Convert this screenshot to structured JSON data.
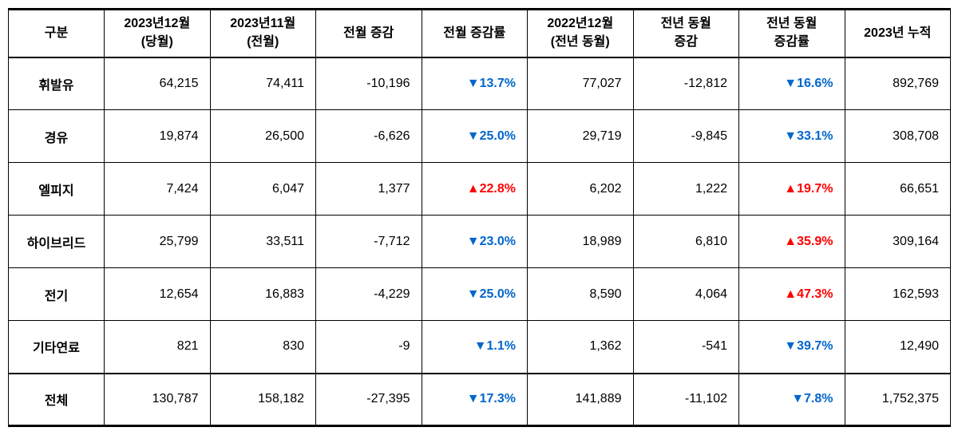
{
  "columns": [
    "구분",
    "2023년12월\n(당월)",
    "2023년11월\n(전월)",
    "전월 증감",
    "전월 증감률",
    "2022년12월\n(전년 동월)",
    "전년 동월\n증감",
    "전년 동월\n증감률",
    "2023년 누적"
  ],
  "rows": [
    {
      "label": "휘발유",
      "c1": "64,215",
      "c2": "74,411",
      "c3": "-10,196",
      "c4": {
        "dir": "down",
        "val": "13.7%"
      },
      "c5": "77,027",
      "c6": "-12,812",
      "c7": {
        "dir": "down",
        "val": "16.6%"
      },
      "c8": "892,769"
    },
    {
      "label": "경유",
      "c1": "19,874",
      "c2": "26,500",
      "c3": "-6,626",
      "c4": {
        "dir": "down",
        "val": "25.0%"
      },
      "c5": "29,719",
      "c6": "-9,845",
      "c7": {
        "dir": "down",
        "val": "33.1%"
      },
      "c8": "308,708"
    },
    {
      "label": "엘피지",
      "c1": "7,424",
      "c2": "6,047",
      "c3": "1,377",
      "c4": {
        "dir": "up",
        "val": "22.8%"
      },
      "c5": "6,202",
      "c6": "1,222",
      "c7": {
        "dir": "up",
        "val": "19.7%"
      },
      "c8": "66,651"
    },
    {
      "label": "하이브리드",
      "c1": "25,799",
      "c2": "33,511",
      "c3": "-7,712",
      "c4": {
        "dir": "down",
        "val": "23.0%"
      },
      "c5": "18,989",
      "c6": "6,810",
      "c7": {
        "dir": "up",
        "val": "35.9%"
      },
      "c8": "309,164"
    },
    {
      "label": "전기",
      "c1": "12,654",
      "c2": "16,883",
      "c3": "-4,229",
      "c4": {
        "dir": "down",
        "val": "25.0%"
      },
      "c5": "8,590",
      "c6": "4,064",
      "c7": {
        "dir": "up",
        "val": "47.3%"
      },
      "c8": "162,593"
    },
    {
      "label": "기타연료",
      "c1": "821",
      "c2": "830",
      "c3": "-9",
      "c4": {
        "dir": "down",
        "val": "1.1%"
      },
      "c5": "1,362",
      "c6": "-541",
      "c7": {
        "dir": "down",
        "val": "39.7%"
      },
      "c8": "12,490"
    }
  ],
  "total": {
    "label": "전체",
    "c1": "130,787",
    "c2": "158,182",
    "c3": "-27,395",
    "c4": {
      "dir": "down",
      "val": "17.3%"
    },
    "c5": "141,889",
    "c6": "-11,102",
    "c7": {
      "dir": "down",
      "val": "7.8%"
    },
    "c8": "1,752,375"
  },
  "symbols": {
    "down": "▼",
    "up": "▲"
  },
  "colors": {
    "down": "#0066cc",
    "up": "#ff0000",
    "text": "#000000",
    "border": "#000000",
    "bg": "#ffffff"
  }
}
